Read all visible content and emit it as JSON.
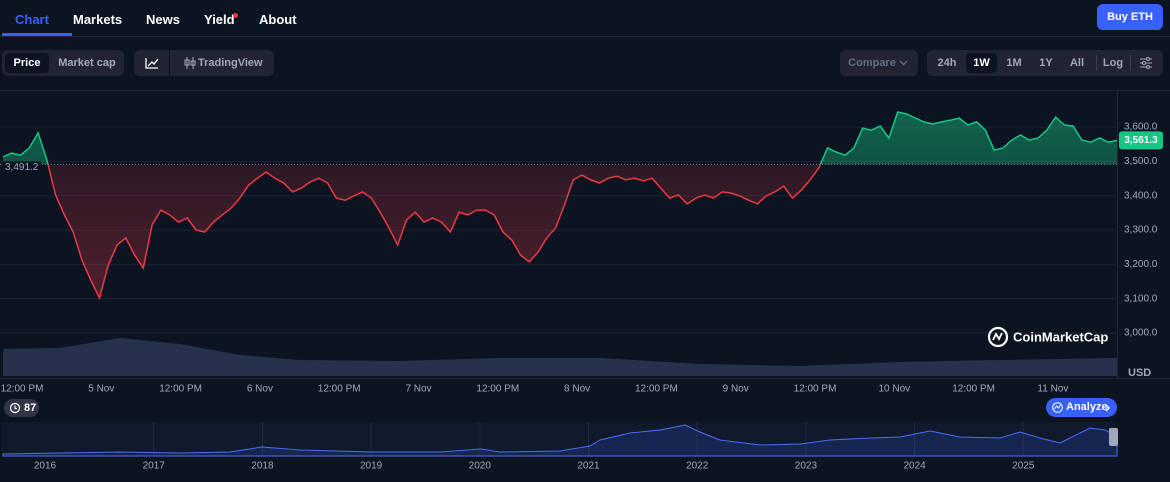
{
  "nav": {
    "tabs": [
      "Chart",
      "Markets",
      "News",
      "Yield",
      "About"
    ],
    "button": "Buy ETH"
  },
  "toolbar": {
    "view_tabs": [
      "Price",
      "Market cap"
    ],
    "tradingview": "TradingView",
    "compare": "Compare",
    "ranges": [
      "24h",
      "1W",
      "1M",
      "1Y",
      "All",
      "Log"
    ]
  },
  "chart": {
    "type": "line",
    "ylim": [
      2965,
      3708
    ],
    "yticks": [
      {
        "value": 3600,
        "label": "3,600.0"
      },
      {
        "value": 3500,
        "label": "3,500.0"
      },
      {
        "value": 3400,
        "label": "3,400.0"
      },
      {
        "value": 3300,
        "label": "3,300.0"
      },
      {
        "value": 3200,
        "label": "3,200.0"
      },
      {
        "value": 3100,
        "label": "3,100.0"
      },
      {
        "value": 3000,
        "label": "3,000.0"
      }
    ],
    "baseline": {
      "value": 3491.2,
      "label": "3,491.2"
    },
    "last": {
      "value": 3561.3,
      "label": "3,561.3"
    },
    "unit": "USD",
    "up_color": "#16c784",
    "down_color": "#ea3943",
    "xlabels": [
      "12:00 PM",
      "5 Nov",
      "12:00 PM",
      "6 Nov",
      "12:00 PM",
      "7 Nov",
      "12:00 PM",
      "8 Nov",
      "12:00 PM",
      "9 Nov",
      "12:00 PM",
      "10 Nov",
      "12:00 PM",
      "11 Nov"
    ],
    "values": [
      3513,
      3524,
      3518,
      3539,
      3583,
      3504,
      3402,
      3344,
      3294,
      3213,
      3154,
      3102,
      3198,
      3256,
      3277,
      3227,
      3189,
      3315,
      3358,
      3344,
      3323,
      3335,
      3300,
      3294,
      3323,
      3344,
      3364,
      3393,
      3431,
      3451,
      3469,
      3451,
      3437,
      3411,
      3422,
      3440,
      3451,
      3437,
      3393,
      3387,
      3399,
      3411,
      3393,
      3352,
      3306,
      3256,
      3329,
      3352,
      3323,
      3335,
      3323,
      3294,
      3352,
      3344,
      3358,
      3358,
      3344,
      3294,
      3271,
      3227,
      3207,
      3236,
      3277,
      3306,
      3373,
      3446,
      3460,
      3446,
      3437,
      3451,
      3457,
      3446,
      3451,
      3443,
      3451,
      3422,
      3393,
      3402,
      3376,
      3393,
      3402,
      3393,
      3411,
      3408,
      3399,
      3387,
      3376,
      3399,
      3411,
      3428,
      3393,
      3416,
      3446,
      3481,
      3539,
      3527,
      3518,
      3539,
      3597,
      3591,
      3603,
      3568,
      3644,
      3638,
      3626,
      3615,
      3609,
      3615,
      3620,
      3626,
      3606,
      3615,
      3591,
      3533,
      3539,
      3562,
      3577,
      3562,
      3568,
      3591,
      3629,
      3606,
      3603,
      3562,
      3556,
      3568,
      3556,
      3561.3
    ]
  },
  "watermark": "CoinMarketCap",
  "badge": "87",
  "analyze": "Analyze",
  "overview": {
    "years": [
      "2016",
      "2017",
      "2018",
      "2019",
      "2020",
      "2021",
      "2022",
      "2023",
      "2024",
      "2025"
    ]
  }
}
